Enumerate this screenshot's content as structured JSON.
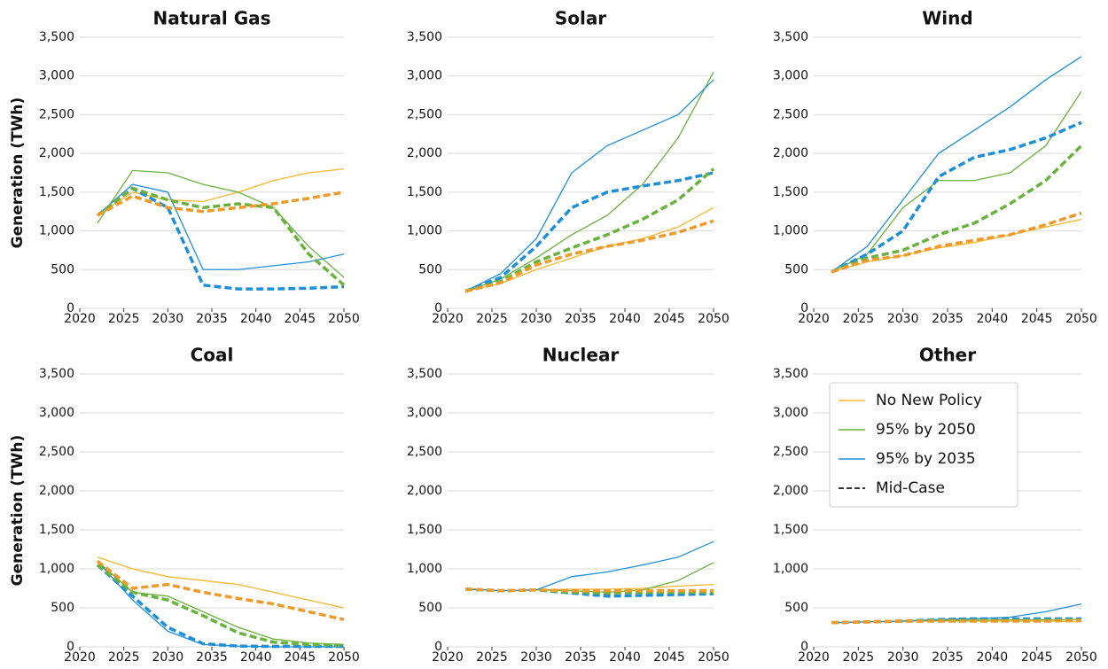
{
  "chart_data": [
    {
      "type": "line",
      "title": "Natural Gas",
      "ylabel": "Generation (TWh)",
      "x": [
        2022,
        2026,
        2030,
        2034,
        2038,
        2042,
        2046,
        2050
      ],
      "xlim": [
        2020,
        2050
      ],
      "xticks": [
        2020,
        2025,
        2030,
        2035,
        2040,
        2045,
        2050
      ],
      "ylim": [
        0,
        3500
      ],
      "yticks": [
        0,
        500,
        {
          "value": 1000,
          "label": "1,000"
        },
        {
          "value": 1500,
          "label": "1,500"
        },
        {
          "value": 2000,
          "label": "2,000"
        },
        {
          "value": 2500,
          "label": "2,500"
        },
        {
          "value": 3000,
          "label": "3,000"
        },
        {
          "value": 3500,
          "label": "3,500"
        }
      ],
      "grid": true,
      "series": [
        {
          "color": "#f5b82e",
          "dashed": false,
          "values": [
            1200,
            1500,
            1400,
            1380,
            1500,
            1650,
            1750,
            1800
          ]
        },
        {
          "color": "#6ab23e",
          "dashed": false,
          "values": [
            1100,
            1780,
            1750,
            1600,
            1500,
            1300,
            800,
            400
          ]
        },
        {
          "color": "#1f8fd8",
          "dashed": false,
          "values": [
            1200,
            1600,
            1500,
            500,
            500,
            550,
            600,
            700
          ]
        },
        {
          "color": "#1f8fd8",
          "dashed": true,
          "values": [
            1200,
            1550,
            1300,
            300,
            250,
            250,
            260,
            280
          ]
        },
        {
          "color": "#6ab23e",
          "dashed": true,
          "values": [
            1200,
            1550,
            1400,
            1300,
            1350,
            1300,
            700,
            300
          ]
        },
        {
          "color": "#ef9a2a",
          "dashed": true,
          "values": [
            1200,
            1450,
            1300,
            1250,
            1300,
            1350,
            1420,
            1500
          ]
        }
      ]
    },
    {
      "type": "line",
      "title": "Solar",
      "x": [
        2022,
        2026,
        2030,
        2034,
        2038,
        2042,
        2046,
        2050
      ],
      "xlim": [
        2020,
        2050
      ],
      "xticks": [
        2020,
        2025,
        2030,
        2035,
        2040,
        2045,
        2050
      ],
      "ylim": [
        0,
        3500
      ],
      "yticks": [
        0,
        500,
        {
          "value": 1000,
          "label": "1,000"
        },
        {
          "value": 1500,
          "label": "1,500"
        },
        {
          "value": 2000,
          "label": "2,000"
        },
        {
          "value": 2500,
          "label": "2,500"
        },
        {
          "value": 3000,
          "label": "3,000"
        },
        {
          "value": 3500,
          "label": "3,500"
        }
      ],
      "grid": true,
      "series": [
        {
          "color": "#f5b82e",
          "dashed": false,
          "values": [
            220,
            320,
            500,
            650,
            800,
            900,
            1050,
            1300
          ]
        },
        {
          "color": "#6ab23e",
          "dashed": false,
          "values": [
            220,
            380,
            650,
            950,
            1200,
            1600,
            2200,
            3050
          ]
        },
        {
          "color": "#1f8fd8",
          "dashed": false,
          "values": [
            220,
            450,
            900,
            1750,
            2100,
            2300,
            2500,
            2950
          ]
        },
        {
          "color": "#1f8fd8",
          "dashed": true,
          "values": [
            220,
            400,
            800,
            1300,
            1500,
            1580,
            1650,
            1750
          ]
        },
        {
          "color": "#6ab23e",
          "dashed": true,
          "values": [
            220,
            350,
            600,
            780,
            950,
            1150,
            1400,
            1800
          ]
        },
        {
          "color": "#ef9a2a",
          "dashed": true,
          "values": [
            220,
            330,
            560,
            700,
            800,
            880,
            980,
            1130
          ]
        }
      ]
    },
    {
      "type": "line",
      "title": "Wind",
      "x": [
        2022,
        2026,
        2030,
        2034,
        2038,
        2042,
        2046,
        2050
      ],
      "xlim": [
        2020,
        2050
      ],
      "xticks": [
        2020,
        2025,
        2030,
        2035,
        2040,
        2045,
        2050
      ],
      "ylim": [
        0,
        3500
      ],
      "yticks": [
        0,
        500,
        {
          "value": 1000,
          "label": "1,000"
        },
        {
          "value": 1500,
          "label": "1,500"
        },
        {
          "value": 2000,
          "label": "2,000"
        },
        {
          "value": 2500,
          "label": "2,500"
        },
        {
          "value": 3000,
          "label": "3,000"
        },
        {
          "value": 3500,
          "label": "3,500"
        }
      ],
      "grid": true,
      "series": [
        {
          "color": "#f5b82e",
          "dashed": false,
          "values": [
            470,
            600,
            680,
            780,
            850,
            950,
            1050,
            1150
          ]
        },
        {
          "color": "#6ab23e",
          "dashed": false,
          "values": [
            470,
            700,
            1300,
            1650,
            1650,
            1750,
            2100,
            2800
          ]
        },
        {
          "color": "#1f8fd8",
          "dashed": false,
          "values": [
            470,
            800,
            1400,
            2000,
            2300,
            2600,
            2950,
            3250
          ]
        },
        {
          "color": "#1f8fd8",
          "dashed": true,
          "values": [
            470,
            700,
            1000,
            1700,
            1950,
            2050,
            2200,
            2400
          ]
        },
        {
          "color": "#6ab23e",
          "dashed": true,
          "values": [
            470,
            650,
            750,
            950,
            1100,
            1350,
            1650,
            2100
          ]
        },
        {
          "color": "#ef9a2a",
          "dashed": true,
          "values": [
            470,
            620,
            680,
            800,
            880,
            950,
            1080,
            1230
          ]
        }
      ]
    },
    {
      "type": "line",
      "title": "Coal",
      "ylabel": "Generation (TWh)",
      "x": [
        2022,
        2026,
        2030,
        2034,
        2038,
        2042,
        2046,
        2050
      ],
      "xlim": [
        2020,
        2050
      ],
      "xticks": [
        2020,
        2025,
        2030,
        2035,
        2040,
        2045,
        2050
      ],
      "ylim": [
        0,
        3500
      ],
      "yticks": [
        0,
        500,
        {
          "value": 1000,
          "label": "1,000"
        },
        {
          "value": 1500,
          "label": "1,500"
        },
        {
          "value": 2000,
          "label": "2,000"
        },
        {
          "value": 2500,
          "label": "2,500"
        },
        {
          "value": 3000,
          "label": "3,000"
        },
        {
          "value": 3500,
          "label": "3,500"
        }
      ],
      "grid": true,
      "series": [
        {
          "color": "#f5b82e",
          "dashed": false,
          "values": [
            1150,
            1000,
            900,
            850,
            800,
            700,
            600,
            500
          ]
        },
        {
          "color": "#6ab23e",
          "dashed": false,
          "values": [
            1100,
            700,
            650,
            450,
            250,
            100,
            50,
            30
          ]
        },
        {
          "color": "#1f8fd8",
          "dashed": false,
          "values": [
            1100,
            600,
            200,
            30,
            10,
            0,
            0,
            0
          ]
        },
        {
          "color": "#1f8fd8",
          "dashed": true,
          "values": [
            1050,
            650,
            250,
            40,
            10,
            5,
            5,
            5
          ]
        },
        {
          "color": "#6ab23e",
          "dashed": true,
          "values": [
            1050,
            700,
            600,
            400,
            180,
            60,
            30,
            20
          ]
        },
        {
          "color": "#ef9a2a",
          "dashed": true,
          "values": [
            1100,
            750,
            800,
            700,
            620,
            550,
            450,
            350
          ]
        }
      ]
    },
    {
      "type": "line",
      "title": "Nuclear",
      "x": [
        2022,
        2026,
        2030,
        2034,
        2038,
        2042,
        2046,
        2050
      ],
      "xlim": [
        2020,
        2050
      ],
      "xticks": [
        2020,
        2025,
        2030,
        2035,
        2040,
        2045,
        2050
      ],
      "ylim": [
        0,
        3500
      ],
      "yticks": [
        0,
        500,
        {
          "value": 1000,
          "label": "1,000"
        },
        {
          "value": 1500,
          "label": "1,500"
        },
        {
          "value": 2000,
          "label": "2,000"
        },
        {
          "value": 2500,
          "label": "2,500"
        },
        {
          "value": 3000,
          "label": "3,000"
        },
        {
          "value": 3500,
          "label": "3,500"
        }
      ],
      "grid": true,
      "series": [
        {
          "color": "#f5b82e",
          "dashed": false,
          "values": [
            750,
            720,
            730,
            740,
            740,
            750,
            780,
            800
          ]
        },
        {
          "color": "#6ab23e",
          "dashed": false,
          "values": [
            740,
            720,
            730,
            720,
            700,
            730,
            850,
            1080
          ]
        },
        {
          "color": "#1f8fd8",
          "dashed": false,
          "values": [
            740,
            720,
            730,
            900,
            960,
            1050,
            1150,
            1350
          ]
        },
        {
          "color": "#1f8fd8",
          "dashed": true,
          "values": [
            740,
            720,
            730,
            690,
            650,
            660,
            670,
            680
          ]
        },
        {
          "color": "#6ab23e",
          "dashed": true,
          "values": [
            740,
            720,
            730,
            700,
            690,
            700,
            700,
            700
          ]
        },
        {
          "color": "#ef9a2a",
          "dashed": true,
          "values": [
            740,
            720,
            730,
            720,
            720,
            720,
            720,
            720
          ]
        }
      ]
    },
    {
      "type": "line",
      "title": "Other",
      "x": [
        2022,
        2026,
        2030,
        2034,
        2038,
        2042,
        2046,
        2050
      ],
      "xlim": [
        2020,
        2050
      ],
      "xticks": [
        2020,
        2025,
        2030,
        2035,
        2040,
        2045,
        2050
      ],
      "ylim": [
        0,
        3500
      ],
      "yticks": [
        0,
        500,
        {
          "value": 1000,
          "label": "1,000"
        },
        {
          "value": 1500,
          "label": "1,500"
        },
        {
          "value": 2000,
          "label": "2,000"
        },
        {
          "value": 2500,
          "label": "2,500"
        },
        {
          "value": 3000,
          "label": "3,000"
        },
        {
          "value": 3500,
          "label": "3,500"
        }
      ],
      "grid": true,
      "series": [
        {
          "color": "#f5b82e",
          "dashed": false,
          "values": [
            310,
            320,
            330,
            330,
            330,
            330,
            330,
            320
          ]
        },
        {
          "color": "#6ab23e",
          "dashed": false,
          "values": [
            310,
            320,
            330,
            340,
            340,
            345,
            345,
            350
          ]
        },
        {
          "color": "#1f8fd8",
          "dashed": false,
          "values": [
            310,
            320,
            330,
            350,
            360,
            380,
            450,
            550
          ]
        },
        {
          "color": "#1f8fd8",
          "dashed": true,
          "values": [
            310,
            320,
            330,
            350,
            360,
            360,
            360,
            360
          ]
        },
        {
          "color": "#6ab23e",
          "dashed": true,
          "values": [
            310,
            320,
            330,
            340,
            340,
            340,
            340,
            345
          ]
        },
        {
          "color": "#ef9a2a",
          "dashed": true,
          "values": [
            310,
            320,
            330,
            330,
            330,
            330,
            330,
            340
          ]
        }
      ],
      "legend_position": "upper left",
      "legend": [
        {
          "name": "No New Policy",
          "color": "#f5b82e",
          "dashed": false
        },
        {
          "name": "95% by 2050",
          "color": "#6ab23e",
          "dashed": false
        },
        {
          "name": "95% by 2035",
          "color": "#1f8fd8",
          "dashed": false
        },
        {
          "name": "Mid-Case",
          "color": "#333333",
          "dashed": true
        }
      ]
    }
  ]
}
